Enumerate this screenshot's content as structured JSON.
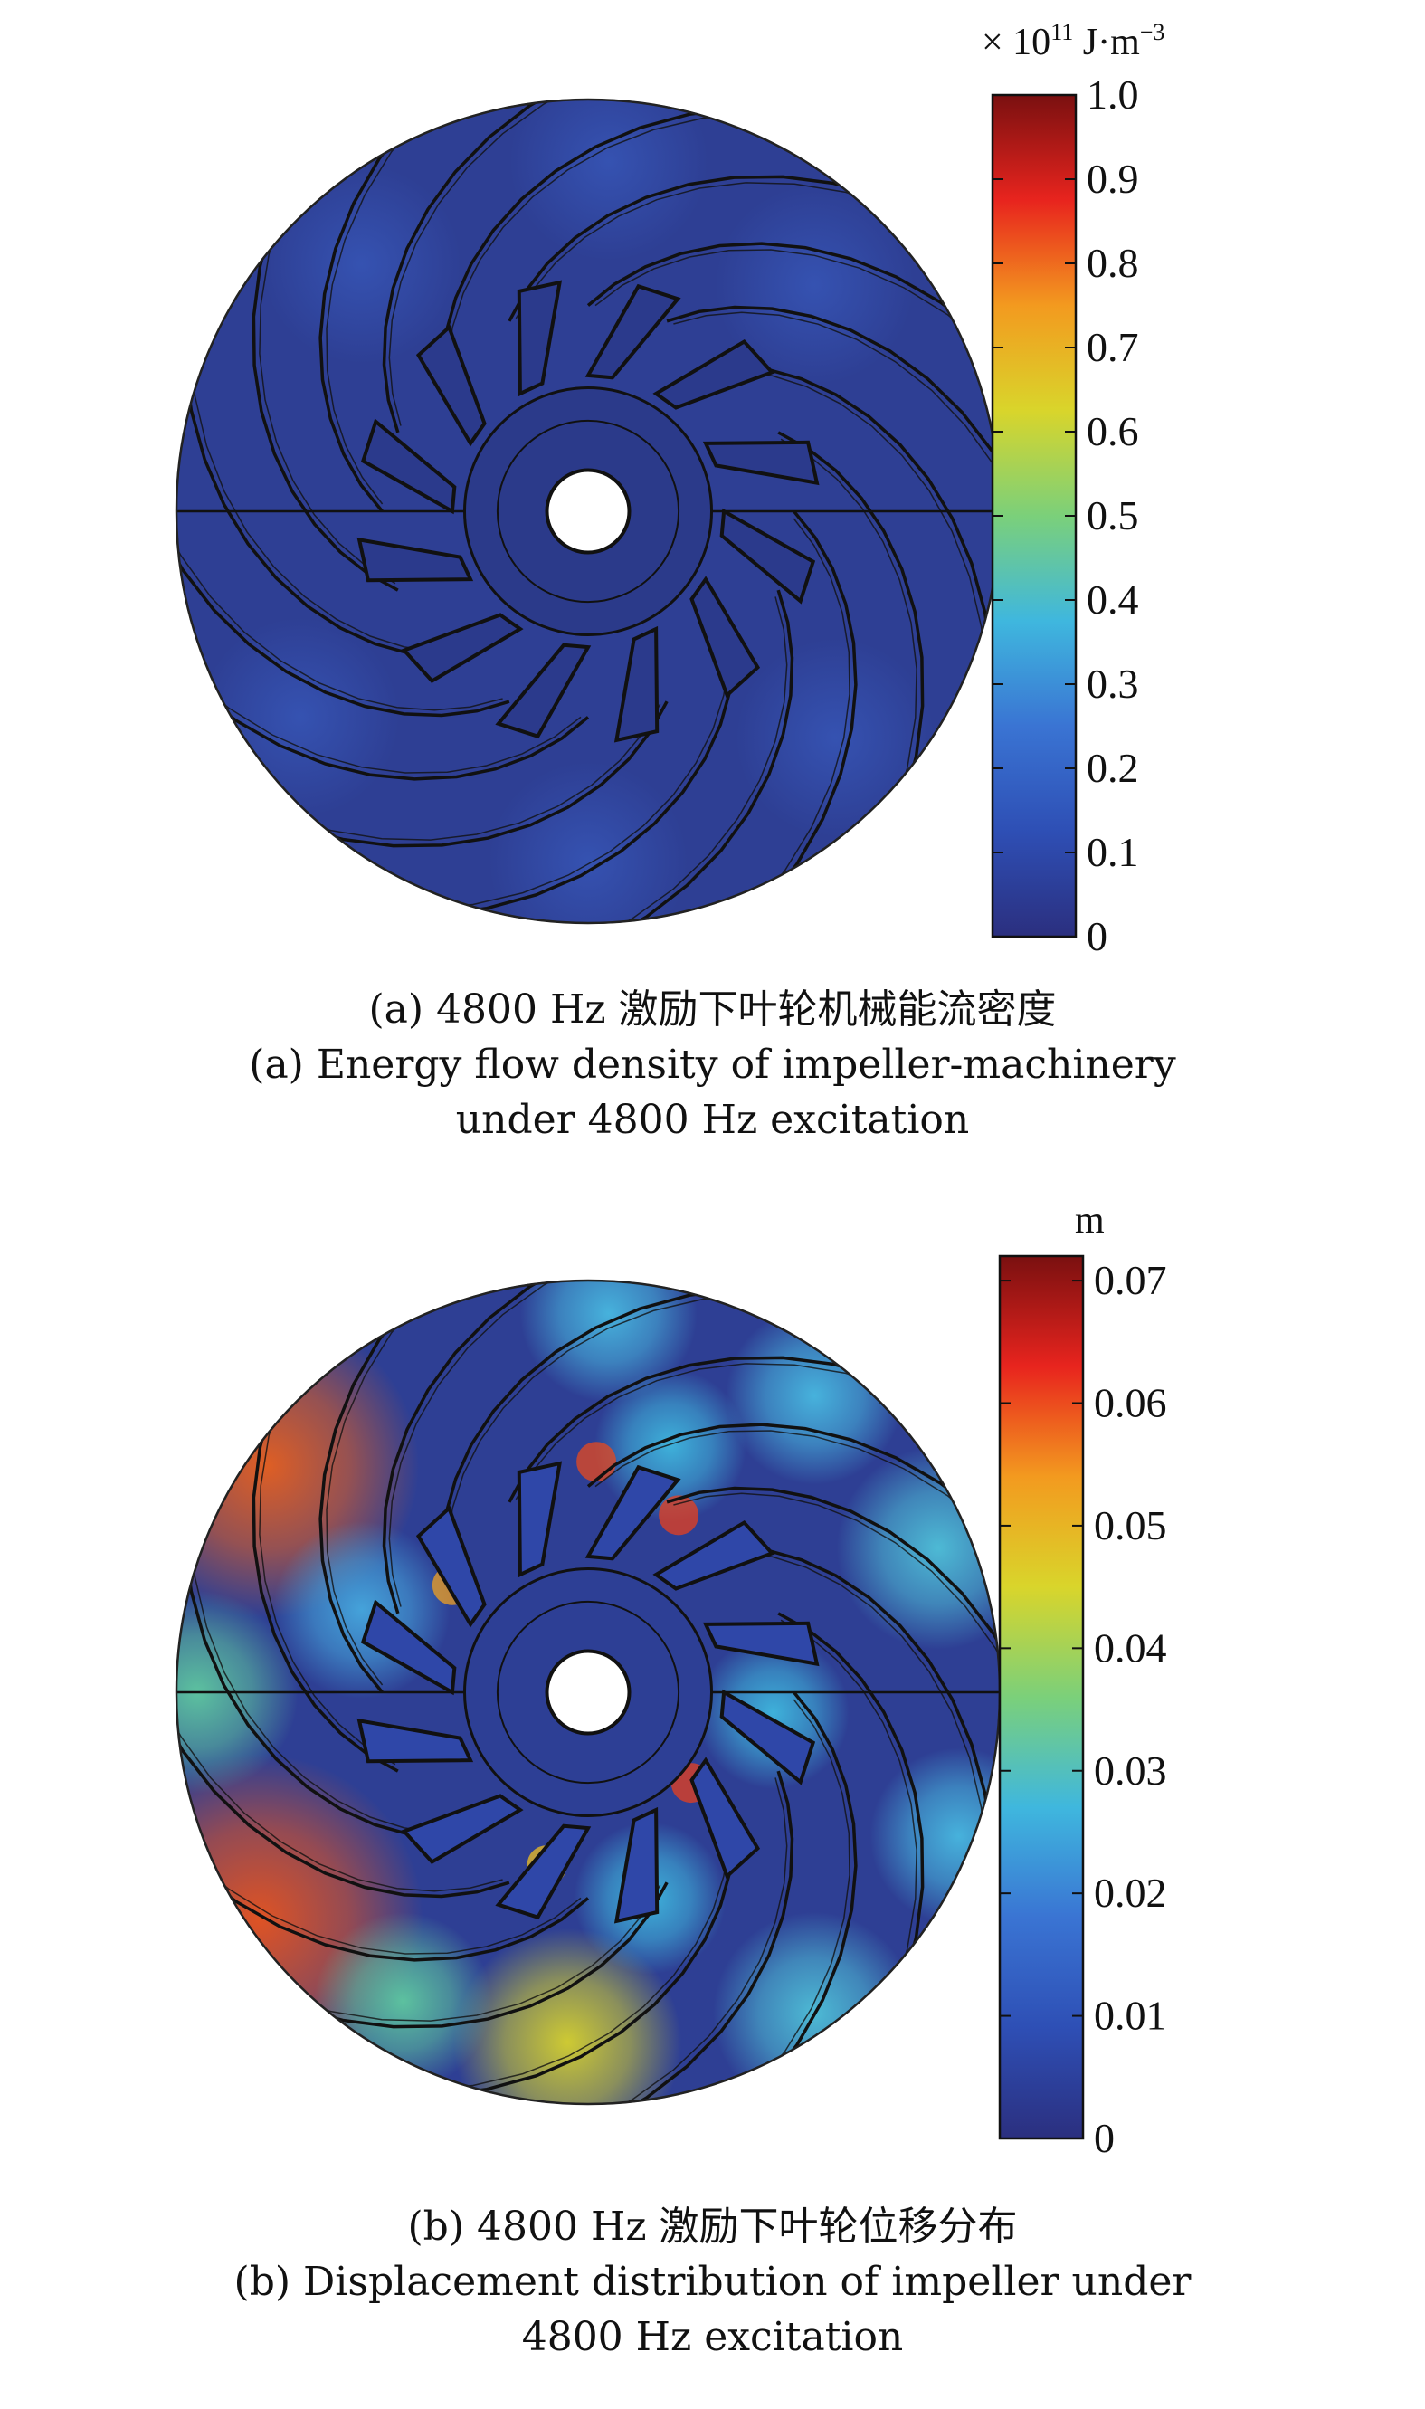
{
  "panel_a": {
    "unit_prefix": "× 10",
    "unit_exp": "11",
    "unit_main": " J·m",
    "unit_exp2": "−3",
    "colorbar": {
      "min": 0,
      "max": 1.0,
      "ticks": [
        "1.0",
        "0.9",
        "0.8",
        "0.7",
        "0.6",
        "0.5",
        "0.4",
        "0.3",
        "0.2",
        "0.1",
        "0"
      ],
      "tick_values": [
        1.0,
        0.9,
        0.8,
        0.7,
        0.6,
        0.5,
        0.4,
        0.3,
        0.2,
        0.1,
        0
      ]
    },
    "caption_cn": "(a) 4800 Hz 激励下叶轮机械能流密度",
    "caption_en_1": "(a) Energy flow density of impeller-machinery",
    "caption_en_2": "under 4800 Hz excitation"
  },
  "panel_b": {
    "unit": "m",
    "colorbar": {
      "min": 0,
      "max": 0.072,
      "ticks": [
        "0.07",
        "0.06",
        "0.05",
        "0.04",
        "0.03",
        "0.02",
        "0.01",
        "0"
      ],
      "tick_values": [
        0.07,
        0.06,
        0.05,
        0.04,
        0.03,
        0.02,
        0.01,
        0
      ]
    },
    "caption_cn": "(b) 4800 Hz 激励下叶轮位移分布",
    "caption_en_1": "(b) Displacement distribution of impeller under",
    "caption_en_2": "4800 Hz excitation"
  },
  "colors": {
    "colormap": [
      "#2b2f7f",
      "#2e4fb5",
      "#3a74d3",
      "#3fb7de",
      "#7bd07a",
      "#d9d52b",
      "#f39a1f",
      "#e8241e",
      "#7a1010"
    ],
    "field_base": "#2e3f94",
    "line": "#111111"
  },
  "blades": {
    "outer_count": 16,
    "inner_count": 12
  }
}
